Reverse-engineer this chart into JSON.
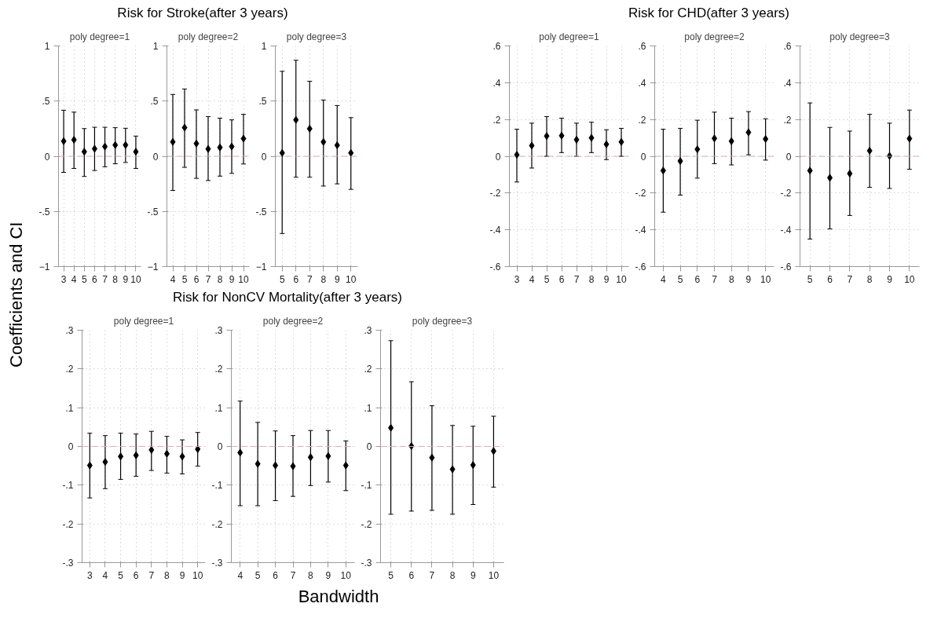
{
  "chart_data": [
    {
      "type": "scatter",
      "subtitle": "poly degree=1",
      "ylabel": "Coefficients and CI",
      "color": "#000000",
      "marker": "diamond",
      "grid": true,
      "x": [
        3,
        4,
        5,
        6,
        7,
        8,
        9,
        10
      ],
      "values": [
        0.137,
        0.149,
        0.041,
        0.068,
        0.088,
        0.102,
        0.102,
        0.041
      ],
      "errors": [
        [
          -0.146,
          0.417
        ],
        [
          -0.11,
          0.4
        ],
        [
          -0.183,
          0.251
        ],
        [
          -0.129,
          0.263
        ],
        [
          -0.095,
          0.263
        ],
        [
          -0.068,
          0.259
        ],
        [
          -0.056,
          0.254
        ],
        [
          -0.11,
          0.183
        ]
      ],
      "xlim": [
        2.5,
        10.5
      ],
      "xticks": [
        3,
        4,
        5,
        6,
        7,
        8,
        9,
        10
      ],
      "ylim": [
        -1,
        1
      ],
      "yticks": [
        -1,
        {
          "value": -0.5,
          "label": "-.5"
        },
        0,
        {
          "value": 0.5,
          "label": ".5"
        },
        1
      ],
      "ref_lines": [
        {
          "axis": "y",
          "value": 0,
          "color": "#e0a9bf",
          "line_style": "dashed"
        }
      ]
    },
    {
      "type": "scatter",
      "title": "Risk for Stroke(after 3 years)",
      "subtitle": "poly degree=2",
      "color": "#000000",
      "marker": "diamond",
      "grid": true,
      "x": [
        4,
        5,
        6,
        7,
        8,
        9,
        10
      ],
      "values": [
        0.13,
        0.26,
        0.115,
        0.066,
        0.08,
        0.088,
        0.16
      ],
      "errors": [
        [
          -0.31,
          0.56
        ],
        [
          -0.1,
          0.61
        ],
        [
          -0.2,
          0.42
        ],
        [
          -0.22,
          0.36
        ],
        [
          -0.18,
          0.345
        ],
        [
          -0.155,
          0.33
        ],
        [
          -0.07,
          0.38
        ]
      ],
      "xlim": [
        3.5,
        10.5
      ],
      "xticks": [
        4,
        5,
        6,
        7,
        8,
        9,
        10
      ],
      "ylim": [
        -1,
        1
      ],
      "yticks": [
        -1,
        {
          "value": -0.5,
          "label": "-.5"
        },
        0,
        {
          "value": 0.5,
          "label": ".5"
        },
        1
      ],
      "ref_lines": [
        {
          "axis": "y",
          "value": 0,
          "color": "#e0a9bf",
          "line_style": "dashed"
        }
      ]
    },
    {
      "type": "scatter",
      "subtitle": "poly degree=3",
      "color": "#000000",
      "marker": "diamond",
      "grid": true,
      "x": [
        5,
        6,
        7,
        8,
        9,
        10
      ],
      "values": [
        0.03,
        0.33,
        0.25,
        0.13,
        0.1,
        0.03
      ],
      "errors": [
        [
          -0.7,
          0.77
        ],
        [
          -0.19,
          0.87
        ],
        [
          -0.19,
          0.68
        ],
        [
          -0.27,
          0.51
        ],
        [
          -0.25,
          0.46
        ],
        [
          -0.3,
          0.35
        ]
      ],
      "xlim": [
        4.5,
        10.5
      ],
      "xticks": [
        5,
        6,
        7,
        8,
        9,
        10
      ],
      "ylim": [
        -1,
        1
      ],
      "yticks": [
        -1,
        {
          "value": -0.5,
          "label": "-.5"
        },
        0,
        {
          "value": 0.5,
          "label": ".5"
        },
        1
      ],
      "ref_lines": [
        {
          "axis": "y",
          "value": 0,
          "color": "#e0a9bf",
          "line_style": "dashed"
        }
      ]
    },
    {
      "type": "scatter",
      "subtitle": "poly degree=1",
      "color": "#000000",
      "marker": "diamond",
      "grid": true,
      "x": [
        3,
        4,
        5,
        6,
        7,
        8,
        9,
        10
      ],
      "values": [
        0.008,
        0.058,
        0.11,
        0.112,
        0.09,
        0.1,
        0.065,
        0.078
      ],
      "errors": [
        [
          -0.14,
          0.147
        ],
        [
          -0.064,
          0.18
        ],
        [
          0.0,
          0.216
        ],
        [
          0.02,
          0.207
        ],
        [
          0.0,
          0.18
        ],
        [
          0.02,
          0.185
        ],
        [
          -0.018,
          0.144
        ],
        [
          0.0,
          0.152
        ]
      ],
      "xlim": [
        2.5,
        10.5
      ],
      "xticks": [
        3,
        4,
        5,
        6,
        7,
        8,
        9,
        10
      ],
      "ylim": [
        -0.6,
        0.6
      ],
      "yticks": [
        {
          "value": -0.6,
          "label": "-.6"
        },
        {
          "value": -0.4,
          "label": "-.4"
        },
        {
          "value": -0.2,
          "label": "-.2"
        },
        0,
        {
          "value": 0.2,
          "label": ".2"
        },
        {
          "value": 0.4,
          "label": ".4"
        },
        {
          "value": 0.6,
          "label": ".6"
        }
      ],
      "ref_lines": [
        {
          "axis": "y",
          "value": 0,
          "color": "#e0a9bf",
          "line_style": "dashed"
        }
      ]
    },
    {
      "type": "scatter",
      "title": "Risk for CHD(after 3 years)",
      "subtitle": "poly degree=2",
      "color": "#000000",
      "marker": "diamond",
      "grid": true,
      "x": [
        4,
        5,
        6,
        7,
        8,
        9,
        10
      ],
      "values": [
        -0.078,
        -0.026,
        0.038,
        0.097,
        0.082,
        0.13,
        0.094
      ],
      "errors": [
        [
          -0.304,
          0.147
        ],
        [
          -0.211,
          0.152
        ],
        [
          -0.119,
          0.196
        ],
        [
          -0.04,
          0.24
        ],
        [
          -0.047,
          0.207
        ],
        [
          0.008,
          0.243
        ],
        [
          -0.021,
          0.204
        ]
      ],
      "xlim": [
        3.5,
        10.5
      ],
      "xticks": [
        4,
        5,
        6,
        7,
        8,
        9,
        10
      ],
      "ylim": [
        -0.6,
        0.6
      ],
      "yticks": [
        {
          "value": -0.6,
          "label": "-.6"
        },
        {
          "value": -0.4,
          "label": "-.4"
        },
        {
          "value": -0.2,
          "label": "-.2"
        },
        0,
        {
          "value": 0.2,
          "label": ".2"
        },
        {
          "value": 0.4,
          "label": ".4"
        },
        {
          "value": 0.6,
          "label": ".6"
        }
      ],
      "ref_lines": [
        {
          "axis": "y",
          "value": 0,
          "color": "#e0a9bf",
          "line_style": "dashed"
        }
      ]
    },
    {
      "type": "scatter",
      "subtitle": "poly degree=3",
      "color": "#000000",
      "marker": "diamond",
      "grid": true,
      "x": [
        5,
        6,
        7,
        8,
        9,
        10
      ],
      "values": [
        -0.078,
        -0.117,
        -0.094,
        0.03,
        0.002,
        0.096
      ],
      "errors": [
        [
          -0.45,
          0.29
        ],
        [
          -0.395,
          0.157
        ],
        [
          -0.322,
          0.137
        ],
        [
          -0.169,
          0.228
        ],
        [
          -0.175,
          0.18
        ],
        [
          -0.071,
          0.251
        ]
      ],
      "xlim": [
        4.5,
        10.5
      ],
      "xticks": [
        5,
        6,
        7,
        8,
        9,
        10
      ],
      "ylim": [
        -0.6,
        0.6
      ],
      "yticks": [
        {
          "value": -0.6,
          "label": "-.6"
        },
        {
          "value": -0.4,
          "label": "-.4"
        },
        {
          "value": -0.2,
          "label": "-.2"
        },
        0,
        {
          "value": 0.2,
          "label": ".2"
        },
        {
          "value": 0.4,
          "label": ".4"
        },
        {
          "value": 0.6,
          "label": ".6"
        }
      ],
      "ref_lines": [
        {
          "axis": "y",
          "value": 0,
          "color": "#e0a9bf",
          "line_style": "dashed"
        }
      ]
    },
    {
      "type": "scatter",
      "subtitle": "poly degree=1",
      "color": "#000000",
      "marker": "diamond",
      "grid": true,
      "x": [
        3,
        4,
        5,
        6,
        7,
        8,
        9,
        10
      ],
      "values": [
        -0.049,
        -0.04,
        -0.026,
        -0.023,
        -0.009,
        -0.019,
        -0.026,
        -0.007
      ],
      "errors": [
        [
          -0.133,
          0.034
        ],
        [
          -0.109,
          0.028
        ],
        [
          -0.085,
          0.034
        ],
        [
          -0.077,
          0.032
        ],
        [
          -0.062,
          0.039
        ],
        [
          -0.069,
          0.026
        ],
        [
          -0.071,
          0.017
        ],
        [
          -0.051,
          0.036
        ]
      ],
      "xlim": [
        2.5,
        10.5
      ],
      "xticks": [
        3,
        4,
        5,
        6,
        7,
        8,
        9,
        10
      ],
      "ylim": [
        -0.3,
        0.3
      ],
      "yticks": [
        {
          "value": -0.3,
          "label": "-.3"
        },
        {
          "value": -0.2,
          "label": "-.2"
        },
        {
          "value": -0.1,
          "label": "-.1"
        },
        0,
        {
          "value": 0.1,
          "label": ".1"
        },
        {
          "value": 0.2,
          "label": ".2"
        },
        {
          "value": 0.3,
          "label": ".3"
        }
      ],
      "ref_lines": [
        {
          "axis": "y",
          "value": 0,
          "color": "#e0a9bf",
          "line_style": "dashed"
        }
      ]
    },
    {
      "type": "scatter",
      "title": "Risk for NonCV Mortality(after 3 years)",
      "subtitle": "poly degree=2",
      "xlabel": "Bandwidth",
      "color": "#000000",
      "marker": "diamond",
      "grid": true,
      "x": [
        4,
        5,
        6,
        7,
        8,
        9,
        10
      ],
      "values": [
        -0.016,
        -0.045,
        -0.049,
        -0.051,
        -0.028,
        -0.025,
        -0.049
      ],
      "errors": [
        [
          -0.153,
          0.117
        ],
        [
          -0.153,
          0.062
        ],
        [
          -0.14,
          0.04
        ],
        [
          -0.129,
          0.028
        ],
        [
          -0.101,
          0.041
        ],
        [
          -0.092,
          0.041
        ],
        [
          -0.114,
          0.014
        ]
      ],
      "xlim": [
        3.5,
        10.5
      ],
      "xticks": [
        4,
        5,
        6,
        7,
        8,
        9,
        10
      ],
      "ylim": [
        -0.3,
        0.3
      ],
      "yticks": [
        {
          "value": -0.3,
          "label": "-.3"
        },
        {
          "value": -0.2,
          "label": "-.2"
        },
        {
          "value": -0.1,
          "label": "-.1"
        },
        0,
        {
          "value": 0.1,
          "label": ".1"
        },
        {
          "value": 0.2,
          "label": ".2"
        },
        {
          "value": 0.3,
          "label": ".3"
        }
      ],
      "ref_lines": [
        {
          "axis": "y",
          "value": 0,
          "color": "#e0a9bf",
          "line_style": "dashed"
        }
      ]
    },
    {
      "type": "scatter",
      "subtitle": "poly degree=3",
      "color": "#000000",
      "marker": "diamond",
      "grid": true,
      "x": [
        5,
        6,
        7,
        8,
        9,
        10
      ],
      "values": [
        0.048,
        0.001,
        -0.029,
        -0.059,
        -0.048,
        -0.012
      ],
      "errors": [
        [
          -0.175,
          0.273
        ],
        [
          -0.167,
          0.167
        ],
        [
          -0.165,
          0.105
        ],
        [
          -0.175,
          0.054
        ],
        [
          -0.15,
          0.052
        ],
        [
          -0.105,
          0.078
        ]
      ],
      "xlim": [
        4.5,
        10.5
      ],
      "xticks": [
        5,
        6,
        7,
        8,
        9,
        10
      ],
      "ylim": [
        -0.3,
        0.3
      ],
      "yticks": [
        {
          "value": -0.3,
          "label": "-.3"
        },
        {
          "value": -0.2,
          "label": "-.2"
        },
        {
          "value": -0.1,
          "label": "-.1"
        },
        0,
        {
          "value": 0.1,
          "label": ".1"
        },
        {
          "value": 0.2,
          "label": ".2"
        },
        {
          "value": 0.3,
          "label": ".3"
        }
      ],
      "ref_lines": [
        {
          "axis": "y",
          "value": 0,
          "color": "#e0a9bf",
          "line_style": "dashed"
        }
      ]
    }
  ]
}
